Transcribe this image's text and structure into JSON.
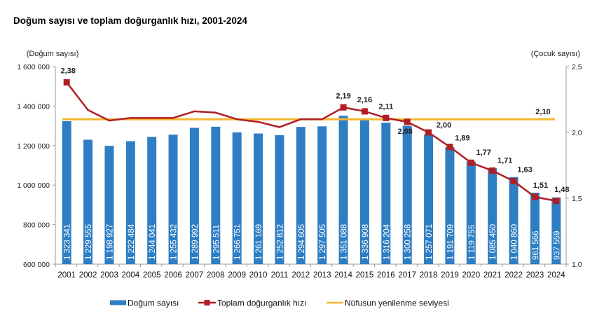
{
  "chart_data": {
    "type": "bar",
    "title": "Doğum sayısı ve toplam doğurganlık hızı, 2001-2024",
    "ylabel_left": "(Doğum sayısı)",
    "ylabel_right": "(Çocuk sayısı)",
    "ylim_left": [
      600000,
      1600000
    ],
    "yticks_left": [
      600000,
      800000,
      1000000,
      1200000,
      1400000,
      1600000
    ],
    "ytick_labels_left": [
      "600 000",
      "800 000",
      "1 000 000",
      "1 200 000",
      "1 400 000",
      "1 600 000"
    ],
    "ylim_right": [
      1.0,
      2.5
    ],
    "yticks_right": [
      1.0,
      1.5,
      2.0,
      2.5
    ],
    "ytick_labels_right": [
      "1,0",
      "1,5",
      "2,0",
      "2,5"
    ],
    "categories": [
      "2001",
      "2002",
      "2003",
      "2004",
      "2005",
      "2006",
      "2007",
      "2008",
      "2009",
      "2010",
      "2011",
      "2012",
      "2013",
      "2014",
      "2015",
      "2016",
      "2017",
      "2018",
      "2019",
      "2020",
      "2021",
      "2022",
      "2023",
      "2024"
    ],
    "series": [
      {
        "name": "Doğum sayısı",
        "type": "bar",
        "axis": "left",
        "color": "#2E7EC4",
        "values": [
          1323341,
          1229555,
          1198927,
          1222484,
          1244041,
          1255432,
          1289992,
          1295511,
          1266751,
          1261169,
          1252812,
          1294605,
          1297505,
          1351088,
          1336908,
          1316204,
          1300258,
          1257071,
          1191709,
          1119755,
          1085450,
          1040860,
          961566,
          937559
        ],
        "labels": [
          "1 323 341",
          "1 229 555",
          "1 198 927",
          "1 222 484",
          "1 244 041",
          "1 255 432",
          "1 289 992",
          "1 295 511",
          "1 266 751",
          "1 261 169",
          "1 252 812",
          "1 294 605",
          "1 297 505",
          "1 351 088",
          "1 336 908",
          "1 316 204",
          "1 300 258",
          "1 257 071",
          "1 191 709",
          "1 119 755",
          "1 085 450",
          "1 040 860",
          "961 566",
          "937 559"
        ]
      },
      {
        "name": "Toplam doğurganlık hızı",
        "type": "line",
        "axis": "right",
        "color": "#B01E23",
        "values": [
          2.38,
          2.17,
          2.09,
          2.11,
          2.11,
          2.11,
          2.16,
          2.15,
          2.1,
          2.08,
          2.04,
          2.1,
          2.1,
          2.19,
          2.16,
          2.11,
          2.08,
          2.0,
          1.89,
          1.77,
          1.71,
          1.63,
          1.51,
          1.48
        ],
        "labeled_points": [
          {
            "year": "2001",
            "label": "2,38"
          },
          {
            "year": "2014",
            "label": "2,19"
          },
          {
            "year": "2015",
            "label": "2,16"
          },
          {
            "year": "2016",
            "label": "2,11"
          },
          {
            "year": "2017",
            "label": "2,08"
          },
          {
            "year": "2018",
            "label": "2,00"
          },
          {
            "year": "2019",
            "label": "1,89"
          },
          {
            "year": "2020",
            "label": "1,77"
          },
          {
            "year": "2021",
            "label": "1,71"
          },
          {
            "year": "2022",
            "label": "1,63"
          },
          {
            "year": "2023",
            "label": "1,51"
          },
          {
            "year": "2024",
            "label": "1,48"
          }
        ]
      },
      {
        "name": "Nüfusun yenilenme seviyesi",
        "type": "line",
        "axis": "right",
        "color": "#F5B52E",
        "value": 2.1,
        "label": "2,10"
      }
    ],
    "legend": {
      "position": "bottom",
      "items": [
        "Doğum sayısı",
        "Toplam doğurganlık hızı",
        "Nüfusun yenilenme seviyesi"
      ]
    },
    "grid": false
  }
}
